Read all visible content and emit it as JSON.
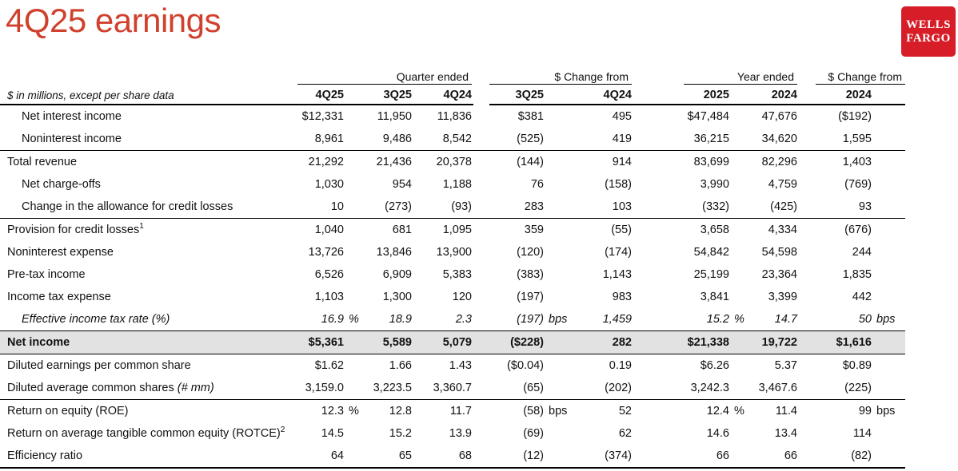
{
  "page": {
    "title": "4Q25 earnings"
  },
  "logo": {
    "line1": "WELLS",
    "line2": "FARGO",
    "bg_color": "#D71E28",
    "text_color": "#FFFFFF"
  },
  "colors": {
    "title_red": "#D0412D",
    "highlight_row_bg": "#E2E2E2",
    "rule": "#000000"
  },
  "table": {
    "units_note": "$ in millions, except per share data",
    "groups": [
      {
        "label": "Quarter ended",
        "span": 3
      },
      {
        "label": "$ Change from",
        "span": 2
      },
      {
        "label": "Year ended",
        "span": 2
      },
      {
        "label": "$ Change from",
        "span": 1
      }
    ],
    "columns": [
      "4Q25",
      "3Q25",
      "4Q24",
      "3Q25",
      "4Q24",
      "2025",
      "2024",
      "2024"
    ],
    "rows": [
      {
        "label": "Net interest income",
        "indent": true,
        "values": [
          "$12,331",
          "11,950",
          "11,836",
          "$381",
          "495",
          "$47,484",
          "47,676",
          "($192)"
        ]
      },
      {
        "label": "Noninterest income",
        "indent": true,
        "rule_below": true,
        "values": [
          "8,961",
          "9,486",
          "8,542",
          "(525)",
          "419",
          "36,215",
          "34,620",
          "1,595"
        ]
      },
      {
        "label": "Total revenue",
        "values": [
          "21,292",
          "21,436",
          "20,378",
          "(144)",
          "914",
          "83,699",
          "82,296",
          "1,403"
        ]
      },
      {
        "label": "Net charge-offs",
        "indent": true,
        "values": [
          "1,030",
          "954",
          "1,188",
          "76",
          "(158)",
          "3,990",
          "4,759",
          "(769)"
        ]
      },
      {
        "label": "Change in the allowance for credit losses",
        "indent": true,
        "rule_below": true,
        "values": [
          "10",
          "(273)",
          "(93)",
          "283",
          "103",
          "(332)",
          "(425)",
          "93"
        ]
      },
      {
        "label": "Provision for credit losses",
        "sup": "1",
        "values": [
          "1,040",
          "681",
          "1,095",
          "359",
          "(55)",
          "3,658",
          "4,334",
          "(676)"
        ]
      },
      {
        "label": "Noninterest expense",
        "values": [
          "13,726",
          "13,846",
          "13,900",
          "(120)",
          "(174)",
          "54,842",
          "54,598",
          "244"
        ]
      },
      {
        "label": "Pre-tax income",
        "values": [
          "6,526",
          "6,909",
          "5,383",
          "(383)",
          "1,143",
          "25,199",
          "23,364",
          "1,835"
        ]
      },
      {
        "label": "Income tax expense",
        "values": [
          "1,103",
          "1,300",
          "120",
          "(197)",
          "983",
          "3,841",
          "3,399",
          "442"
        ]
      },
      {
        "label": "Effective income tax rate (%)",
        "indent": true,
        "italic": true,
        "rule_below": true,
        "values": [
          "16.9",
          "18.9",
          "2.3",
          "(197)",
          "1,459",
          "15.2",
          "14.7",
          "50"
        ],
        "suffixes": [
          "%",
          "",
          "",
          "bps",
          "",
          "%",
          "",
          "bps"
        ]
      },
      {
        "label": "Net income",
        "bold": true,
        "highlight": true,
        "rule_below": true,
        "values": [
          "$5,361",
          "5,589",
          "5,079",
          "($228)",
          "282",
          "$21,338",
          "19,722",
          "$1,616"
        ]
      },
      {
        "label": "Diluted earnings per common share",
        "values": [
          "$1.62",
          "1.66",
          "1.43",
          "($0.04)",
          "0.19",
          "$6.26",
          "5.37",
          "$0.89"
        ]
      },
      {
        "label": "Diluted average common shares",
        "label_note": "(# mm)",
        "rule_below": true,
        "values": [
          "3,159.0",
          "3,223.5",
          "3,360.7",
          "(65)",
          "(202)",
          "3,242.3",
          "3,467.6",
          "(225)"
        ]
      },
      {
        "label": "Return on equity (ROE)",
        "values": [
          "12.3",
          "12.8",
          "11.7",
          "(58)",
          "52",
          "12.4",
          "11.4",
          "99"
        ],
        "suffixes": [
          "%",
          "",
          "",
          "bps",
          "",
          "%",
          "",
          "bps"
        ]
      },
      {
        "label": "Return on average tangible common equity (ROTCE)",
        "sup": "2",
        "values": [
          "14.5",
          "15.2",
          "13.9",
          "(69)",
          "62",
          "14.6",
          "13.4",
          "114"
        ]
      },
      {
        "label": "Efficiency ratio",
        "rule_below": true,
        "final": true,
        "values": [
          "64",
          "65",
          "68",
          "(12)",
          "(374)",
          "66",
          "66",
          "(82)"
        ]
      }
    ]
  }
}
